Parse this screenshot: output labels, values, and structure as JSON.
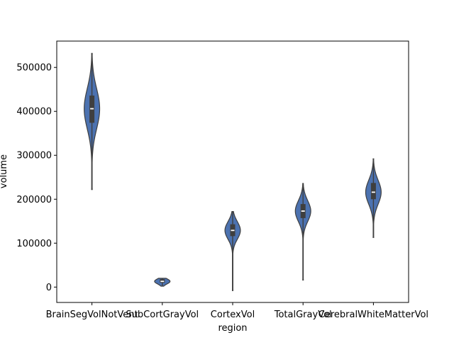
{
  "chart_data": {
    "type": "violin",
    "xlabel": "region",
    "ylabel": "volume",
    "categories": [
      "BrainSegVolNotVent",
      "SubCortGrayVol",
      "CortexVol",
      "TotalGrayVol",
      "CerebralWhiteMatterVol"
    ],
    "ylim": [
      -35000,
      560000
    ],
    "yticks": [
      0,
      100000,
      200000,
      300000,
      400000,
      500000
    ],
    "ytick_labels": [
      "0",
      "100000",
      "200000",
      "300000",
      "400000",
      "500000"
    ],
    "violins": [
      {
        "category": "BrainSegVolNotVent",
        "min": 222000,
        "q1": 374000,
        "median": 406000,
        "q3": 436000,
        "max": 532000
      },
      {
        "category": "SubCortGrayVol",
        "min": 2000,
        "q1": 10000,
        "median": 13000,
        "q3": 18000,
        "max": 20000
      },
      {
        "category": "CortexVol",
        "min": -8000,
        "q1": 116000,
        "median": 129000,
        "q3": 143000,
        "max": 172000
      },
      {
        "category": "TotalGrayVol",
        "min": 16000,
        "q1": 157000,
        "median": 173000,
        "q3": 189000,
        "max": 236000
      },
      {
        "category": "CerebralWhiteMatterVol",
        "min": 113000,
        "q1": 200000,
        "median": 216000,
        "q3": 237000,
        "max": 292000
      }
    ],
    "fill_color": "#4c72b0",
    "edge_color": "#3f3f3f"
  }
}
